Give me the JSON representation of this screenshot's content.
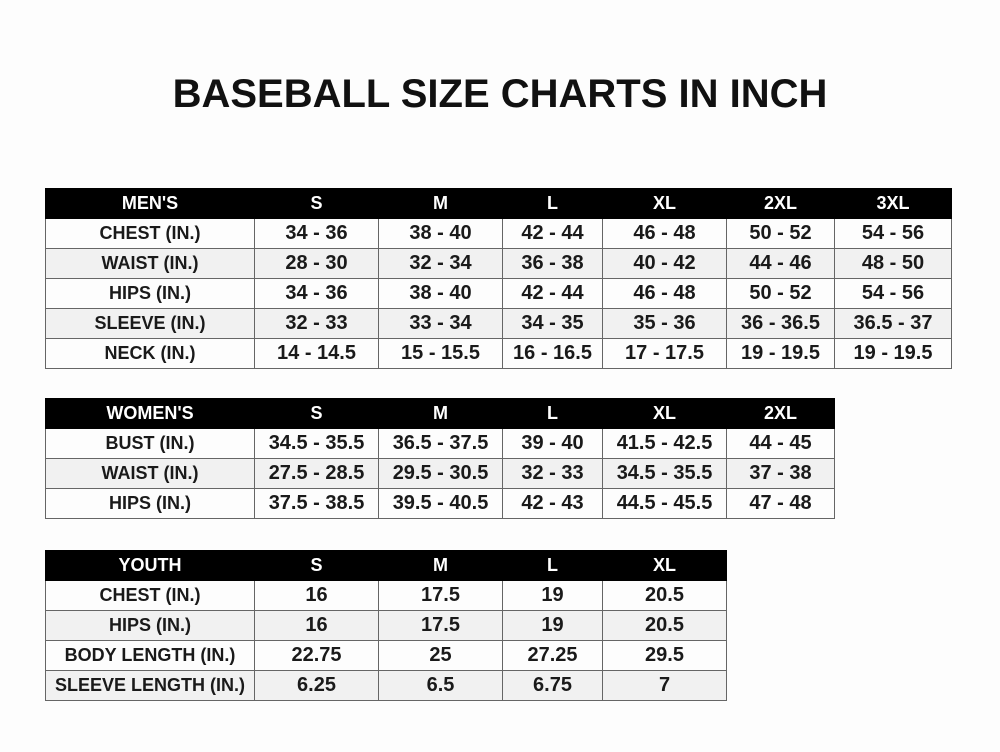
{
  "title": "BASEBALL SIZE CHARTS IN INCH",
  "tables": [
    {
      "id": "men",
      "header": [
        "MEN'S",
        "S",
        "M",
        "L",
        "XL",
        "2XL",
        "3XL"
      ],
      "rows": [
        [
          "CHEST (IN.)",
          "34 - 36",
          "38 - 40",
          "42 - 44",
          "46 - 48",
          "50 - 52",
          "54 - 56"
        ],
        [
          "WAIST (IN.)",
          "28 - 30",
          "32 - 34",
          "36 - 38",
          "40 - 42",
          "44 - 46",
          "48 - 50"
        ],
        [
          "HIPS (IN.)",
          "34 - 36",
          "38 - 40",
          "42 - 44",
          "46 - 48",
          "50 - 52",
          "54 - 56"
        ],
        [
          "SLEEVE (IN.)",
          "32 - 33",
          "33 - 34",
          "34 - 35",
          "35 - 36",
          "36 - 36.5",
          "36.5 - 37"
        ],
        [
          "NECK (IN.)",
          "14 - 14.5",
          "15 - 15.5",
          "16 - 16.5",
          "17 - 17.5",
          "19 - 19.5",
          "19 - 19.5"
        ]
      ]
    },
    {
      "id": "women",
      "header": [
        "WOMEN'S",
        "S",
        "M",
        "L",
        "XL",
        "2XL"
      ],
      "rows": [
        [
          "BUST (IN.)",
          "34.5 - 35.5",
          "36.5 - 37.5",
          "39 - 40",
          "41.5 - 42.5",
          "44 - 45"
        ],
        [
          "WAIST (IN.)",
          "27.5 - 28.5",
          "29.5 - 30.5",
          "32 - 33",
          "34.5 - 35.5",
          "37 - 38"
        ],
        [
          "HIPS (IN.)",
          "37.5 - 38.5",
          "39.5 - 40.5",
          "42 - 43",
          "44.5 - 45.5",
          "47 - 48"
        ]
      ]
    },
    {
      "id": "youth",
      "header": [
        "YOUTH",
        "S",
        "M",
        "L",
        "XL"
      ],
      "rows": [
        [
          "CHEST (IN.)",
          "16",
          "17.5",
          "19",
          "20.5"
        ],
        [
          "HIPS (IN.)",
          "16",
          "17.5",
          "19",
          "20.5"
        ],
        [
          "BODY LENGTH (IN.)",
          "22.75",
          "25",
          "27.25",
          "29.5"
        ],
        [
          "SLEEVE LENGTH (IN.)",
          "6.25",
          "6.5",
          "6.75",
          "7"
        ]
      ]
    }
  ]
}
